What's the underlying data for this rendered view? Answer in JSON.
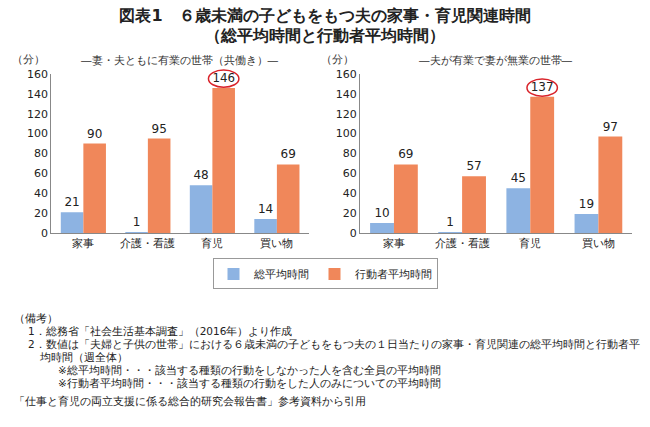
{
  "title": "図表1　６歳未満の子どもをもつ夫の家事・育児関連時間",
  "subtitle": "（総平均時間と行動者平均時間）",
  "chart_data": [
    {
      "type": "bar",
      "title": "―妻・夫ともに有業の世帯（共働き）―",
      "y_label": "（分）",
      "categories": [
        "家事",
        "介護・看護",
        "育児",
        "買い物"
      ],
      "series": [
        {
          "name": "総平均時間",
          "color": "#8db3e2",
          "values": [
            21,
            1,
            48,
            14
          ]
        },
        {
          "name": "行動者平均時間",
          "color": "#f0875a",
          "values": [
            90,
            95,
            146,
            69
          ]
        }
      ],
      "ylim": [
        0,
        160
      ],
      "yticks": [
        0,
        20,
        40,
        60,
        80,
        100,
        120,
        140,
        160
      ],
      "grid": false,
      "data_labels": true,
      "legend": "bottom",
      "highlight": {
        "category": "育児",
        "series": "行動者平均時間"
      }
    },
    {
      "type": "bar",
      "title": "―夫が有業で妻が無業の世帯―",
      "y_label": "（分）",
      "categories": [
        "家事",
        "介護・看護",
        "育児",
        "買い物"
      ],
      "series": [
        {
          "name": "総平均時間",
          "color": "#8db3e2",
          "values": [
            10,
            1,
            45,
            19
          ]
        },
        {
          "name": "行動者平均時間",
          "color": "#f0875a",
          "values": [
            69,
            57,
            137,
            97
          ]
        }
      ],
      "ylim": [
        0,
        160
      ],
      "yticks": [
        0,
        20,
        40,
        60,
        80,
        100,
        120,
        140,
        160
      ],
      "grid": false,
      "data_labels": true,
      "legend": "bottom",
      "highlight": {
        "category": "育児",
        "series": "行動者平均時間"
      }
    }
  ],
  "notes": {
    "heading": "（備考）",
    "items": [
      {
        "text": "1．総務省「社会生活基本調査」（2016年）より作成",
        "details": []
      },
      {
        "text": "2．数値は「夫婦と子供の世帯」における６歳未満の子どもをもつ夫の１日当たりの家事・育児関連の総平均時間と行動者平均時間（週全体）",
        "details": [
          "※総平均時間・・・該当する種類の行動をしなかった人を含む全員の平均時間",
          "※行動者平均時間・・・該当する種類の行動をした人のみについての平均時間"
        ]
      }
    ],
    "source": "「仕事と育児の両立支援に係る総合的研究会報告書」参考資料から引用"
  }
}
